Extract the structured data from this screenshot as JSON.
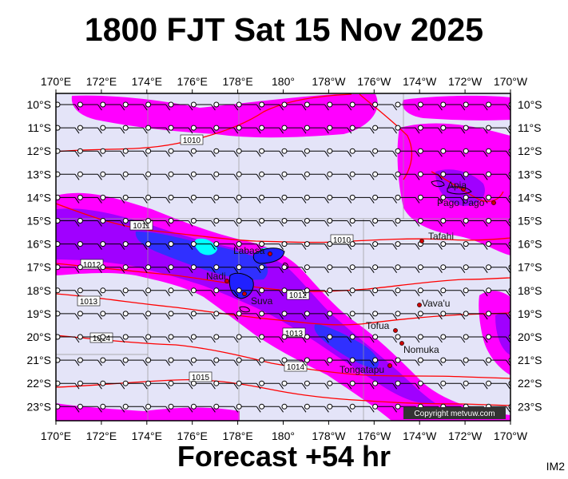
{
  "title": "1800 FJT Sat 15 Nov 2025",
  "subtitle": "Forecast +54 hr",
  "image_code": "IM2",
  "copyright": "Copyright metvuw.com",
  "colors": {
    "background": "#e4e4f8",
    "rain_light": "#ff00ff",
    "rain_medium": "#a000ff",
    "rain_heavy": "#3030ff",
    "rain_extreme": "#00ffff",
    "isobar": "#ff0000",
    "coast": "#000000"
  },
  "axes": {
    "lon_labels": [
      "170°E",
      "172°E",
      "174°E",
      "176°E",
      "178°E",
      "180°",
      "178°W",
      "176°W",
      "174°W",
      "172°W",
      "170°W"
    ],
    "lat_labels": [
      "10°S",
      "11°S",
      "12°S",
      "13°S",
      "14°S",
      "15°S",
      "16°S",
      "17°S",
      "18°S",
      "19°S",
      "20°S",
      "21°S",
      "22°S",
      "23°S"
    ]
  },
  "isobars": [
    {
      "label": "1010"
    },
    {
      "label": "1011"
    },
    {
      "label": "1012"
    },
    {
      "label": "1013"
    },
    {
      "label": "1014"
    },
    {
      "label": "1015"
    },
    {
      "label": "1010"
    },
    {
      "label": "1012"
    },
    {
      "label": "1013"
    },
    {
      "label": "1014"
    }
  ],
  "places": [
    {
      "name": "Apia"
    },
    {
      "name": "Pago Pago"
    },
    {
      "name": "Tafahi"
    },
    {
      "name": "Labasa"
    },
    {
      "name": "Nadi"
    },
    {
      "name": "Suva"
    },
    {
      "name": "Vava'u"
    },
    {
      "name": "Tofua"
    },
    {
      "name": "Nomuka"
    },
    {
      "name": "Tongatapu"
    }
  ]
}
